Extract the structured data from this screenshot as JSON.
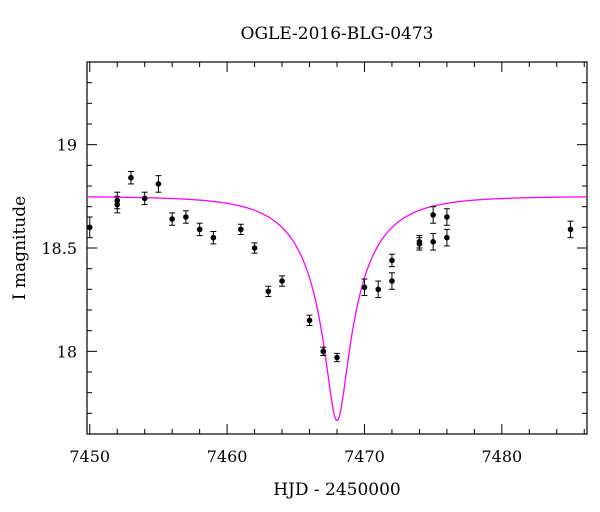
{
  "chart_data": {
    "type": "scatter",
    "title": "OGLE-2016-BLG-0473",
    "xlabel": "HJD - 2450000",
    "ylabel": "I magnitude",
    "xlim": [
      7449.8,
      7486.2
    ],
    "ylim": [
      19.4,
      17.6
    ],
    "y_inverted": true,
    "xticks": [
      7450,
      7460,
      7470,
      7480
    ],
    "yticks": [
      18,
      18.5,
      19
    ],
    "x_minor_step": 2,
    "y_minor_step": 0.1,
    "grid": false,
    "legend": "none",
    "series": [
      {
        "kind": "points_with_errorbars",
        "color": "#000000",
        "points": [
          {
            "x": 7450.0,
            "y": 18.6,
            "err": 0.05
          },
          {
            "x": 7452.0,
            "y": 18.73,
            "err": 0.04
          },
          {
            "x": 7452.0,
            "y": 18.71,
            "err": 0.04
          },
          {
            "x": 7453.0,
            "y": 18.84,
            "err": 0.03
          },
          {
            "x": 7454.0,
            "y": 18.74,
            "err": 0.03
          },
          {
            "x": 7455.0,
            "y": 18.81,
            "err": 0.04
          },
          {
            "x": 7456.0,
            "y": 18.64,
            "err": 0.03
          },
          {
            "x": 7457.0,
            "y": 18.65,
            "err": 0.03
          },
          {
            "x": 7458.0,
            "y": 18.59,
            "err": 0.03
          },
          {
            "x": 7459.0,
            "y": 18.55,
            "err": 0.03
          },
          {
            "x": 7461.0,
            "y": 18.59,
            "err": 0.025
          },
          {
            "x": 7462.0,
            "y": 18.5,
            "err": 0.025
          },
          {
            "x": 7463.0,
            "y": 18.29,
            "err": 0.025
          },
          {
            "x": 7464.0,
            "y": 18.34,
            "err": 0.025
          },
          {
            "x": 7466.0,
            "y": 18.15,
            "err": 0.025
          },
          {
            "x": 7467.0,
            "y": 18.0,
            "err": 0.02
          },
          {
            "x": 7468.0,
            "y": 17.97,
            "err": 0.02
          },
          {
            "x": 7470.0,
            "y": 18.31,
            "err": 0.04
          },
          {
            "x": 7471.0,
            "y": 18.3,
            "err": 0.04
          },
          {
            "x": 7472.0,
            "y": 18.34,
            "err": 0.04
          },
          {
            "x": 7472.0,
            "y": 18.44,
            "err": 0.03
          },
          {
            "x": 7474.0,
            "y": 18.52,
            "err": 0.03
          },
          {
            "x": 7474.0,
            "y": 18.53,
            "err": 0.03
          },
          {
            "x": 7475.0,
            "y": 18.53,
            "err": 0.04
          },
          {
            "x": 7475.0,
            "y": 18.66,
            "err": 0.04
          },
          {
            "x": 7476.0,
            "y": 18.55,
            "err": 0.04
          },
          {
            "x": 7476.0,
            "y": 18.65,
            "err": 0.04
          },
          {
            "x": 7485.0,
            "y": 18.59,
            "err": 0.04
          }
        ]
      },
      {
        "kind": "model_curve",
        "color": "#ff00ff",
        "model": "pspl",
        "t0": 7468.0,
        "tE": 4.9,
        "u0": 0.15,
        "base_mag": 18.75,
        "blending": 0.3
      }
    ]
  }
}
